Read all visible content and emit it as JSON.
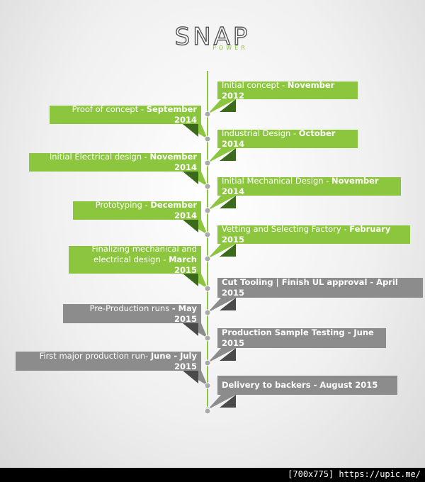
{
  "logo": {
    "name": "SNAP",
    "tagline": "POWER"
  },
  "milestones": [
    {
      "label": "Initial concept - ",
      "date": "November 2012",
      "side": "right",
      "color": "#8cc63f"
    },
    {
      "label": "Proof of concept - ",
      "date": "September 2014",
      "side": "left",
      "color": "#8cc63f"
    },
    {
      "label": "Industrial Design - ",
      "date": "October 2014",
      "side": "right",
      "color": "#8cc63f"
    },
    {
      "label": "Initial Electrical design - ",
      "date": "November 2014",
      "side": "left",
      "color": "#8cc63f"
    },
    {
      "label": "Initial Mechanical Design - ",
      "date": "November 2014",
      "side": "right",
      "color": "#8cc63f"
    },
    {
      "label": "Prototyping - ",
      "date": "December 2014",
      "side": "left",
      "color": "#8cc63f"
    },
    {
      "label": "Vetting and Selecting Factory - ",
      "date": "February 2015",
      "side": "right",
      "color": "#8cc63f"
    },
    {
      "label": "Finalizing mechanical and electrical design - ",
      "date": "March 2015",
      "side": "left",
      "color": "#8cc63f"
    },
    {
      "label": "Cut Tooling | Finish UL approval - ",
      "date": "April 2015",
      "side": "right",
      "color": "#8c8c8c",
      "bold_label": true
    },
    {
      "label": "Pre-Production runs ",
      "date": "- May 2015",
      "side": "left",
      "color": "#8c8c8c"
    },
    {
      "label": "Production Sample Testing - ",
      "date": "June 2015",
      "side": "right",
      "color": "#8c8c8c",
      "bold_label": true
    },
    {
      "label": "First major production run- ",
      "date": "June - July 2015",
      "side": "left",
      "color": "#8c8c8c"
    },
    {
      "label": "Delivery to backers - ",
      "date": "August 2015",
      "side": "right",
      "color": "#8c8c8c",
      "bold_label": true
    }
  ],
  "footer": "[700x775] https://upic.me/"
}
